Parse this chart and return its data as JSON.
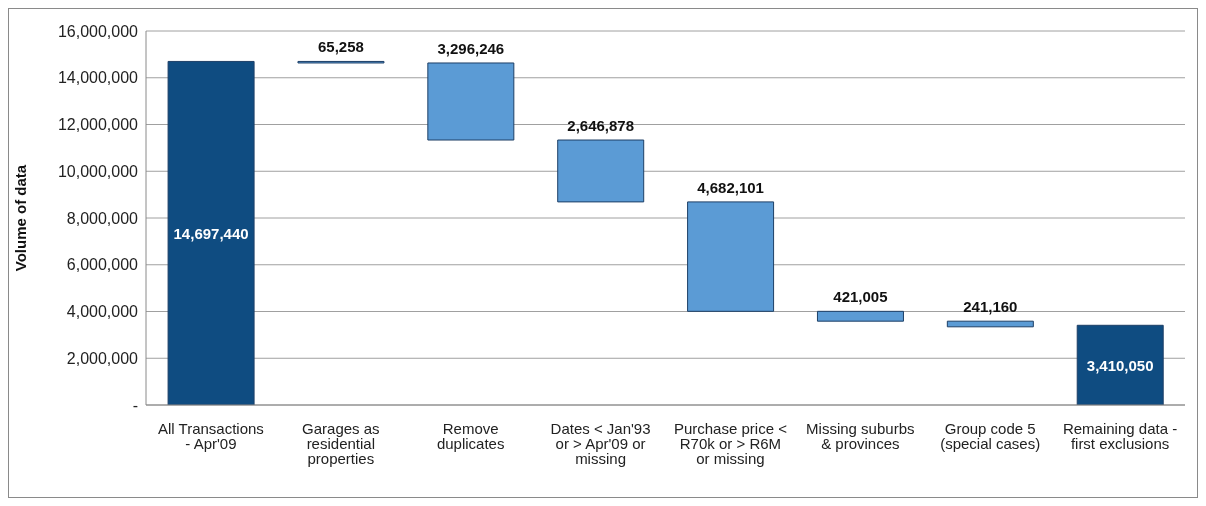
{
  "chart_data": {
    "type": "bar",
    "ylabel": "Volume of data",
    "categories": [
      "All Transactions - Apr'09",
      "Garages as residential properties",
      "Remove duplicates",
      "Dates < Jan'93 or > Apr'09 or missing",
      "Purchase price < R70k or > R6M or missing",
      "Missing suburbs & provinces",
      "Group code 5 (special cases)",
      "Remaining data - first exclusions"
    ],
    "values": [
      14697440,
      65258,
      3296246,
      2646878,
      4682101,
      421005,
      241160,
      3410050
    ],
    "value_labels": [
      "14,697,440",
      "65,258",
      "3,296,246",
      "2,646,878",
      "4,682,101",
      "421,005",
      "241,160",
      "3,410,050"
    ],
    "base": [
      0,
      14632182,
      11335936,
      8689058,
      4006957,
      3585952,
      3344792,
      0
    ],
    "colors": [
      "#0f4c81",
      "#5b9bd5",
      "#5b9bd5",
      "#5b9bd5",
      "#5b9bd5",
      "#5b9bd5",
      "#5b9bd5",
      "#0f4c81"
    ],
    "ylim": [
      0,
      16000000
    ],
    "yticks": [
      {
        "value": 0,
        "label": "-"
      },
      {
        "value": 2000000,
        "label": "2,000,000"
      },
      {
        "value": 4000000,
        "label": "4,000,000"
      },
      {
        "value": 6000000,
        "label": "6,000,000"
      },
      {
        "value": 8000000,
        "label": "8,000,000"
      },
      {
        "value": 10000000,
        "label": "10,000,000"
      },
      {
        "value": 12000000,
        "label": "12,000,000"
      },
      {
        "value": 14000000,
        "label": "14,000,000"
      },
      {
        "value": 16000000,
        "label": "16,000,000"
      }
    ],
    "grid": "y"
  }
}
